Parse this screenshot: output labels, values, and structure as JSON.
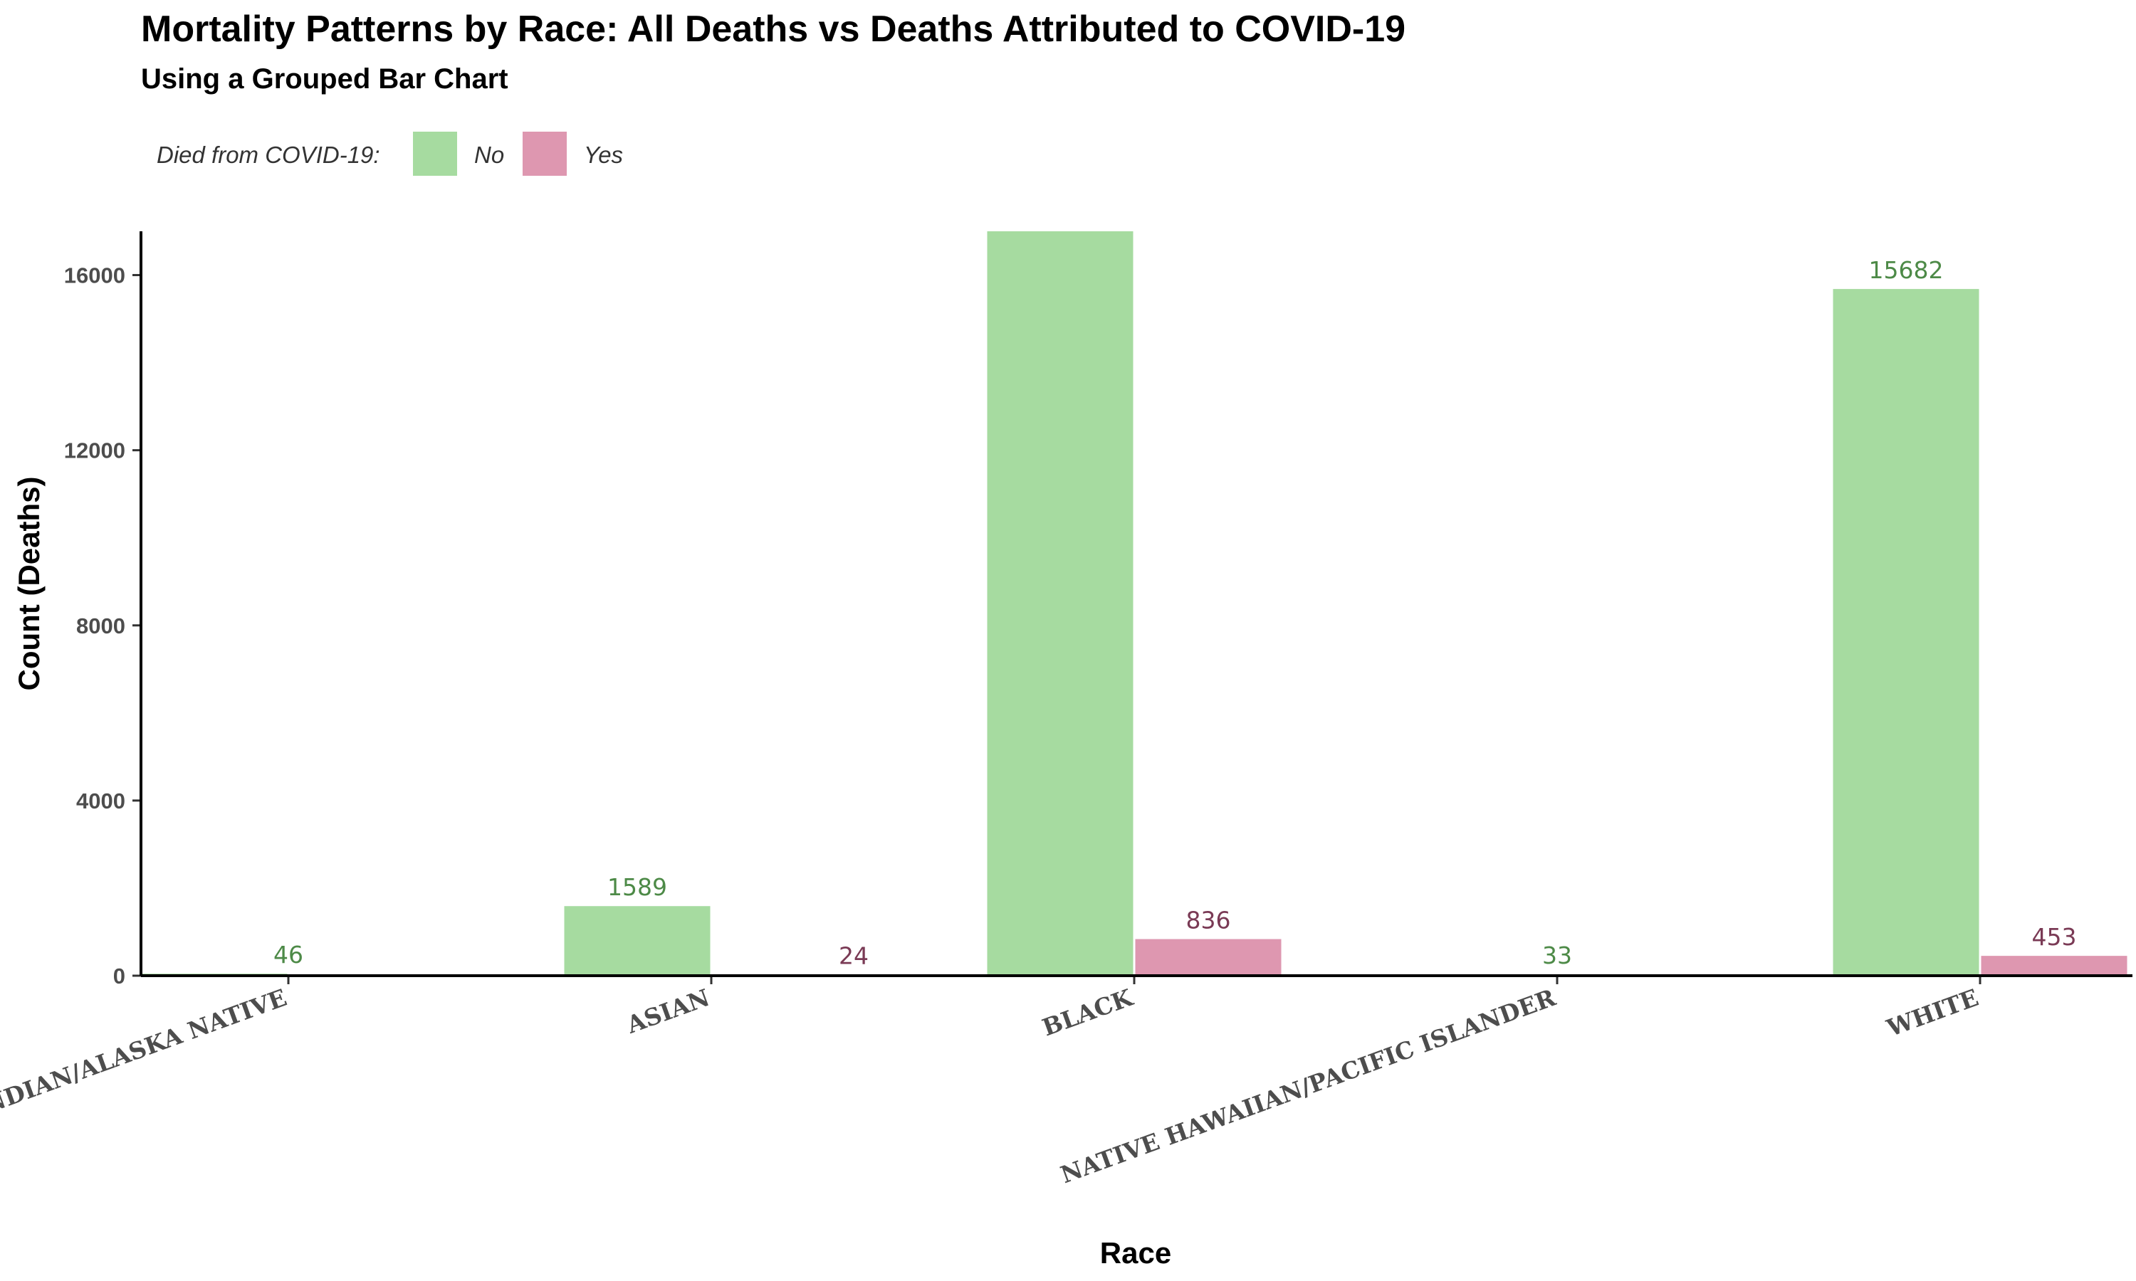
{
  "chart_data": {
    "type": "bar",
    "title": "Mortality Patterns by Race: All Deaths vs Deaths Attributed to COVID-19",
    "subtitle": "Using a Grouped Bar Chart",
    "xlabel": "Race",
    "ylabel": "Count (Deaths)",
    "ylim": [
      0,
      17000
    ],
    "yticks": [
      0,
      4000,
      8000,
      12000,
      16000
    ],
    "categories": [
      "AMERICAN INDIAN/ALASKA NATIVE",
      "ASIAN",
      "BLACK",
      "NATIVE HAWAIIAN/PACIFIC ISLANDER",
      "WHITE"
    ],
    "legend": {
      "title": "Died from COVID-19:",
      "position": "top-left"
    },
    "grid": false,
    "series": [
      {
        "name": "No",
        "color": "#a6dba0",
        "label_color": "#4d8a47",
        "values": [
          46,
          1589,
          17000,
          33,
          15682
        ],
        "labels": [
          "46",
          "1589",
          null,
          "33",
          "15682"
        ]
      },
      {
        "name": "Yes",
        "color": "#de97b0",
        "label_color": "#7a3a55",
        "values": [
          null,
          24,
          836,
          null,
          453
        ],
        "labels": [
          null,
          "24",
          "836",
          null,
          "453"
        ]
      }
    ]
  }
}
